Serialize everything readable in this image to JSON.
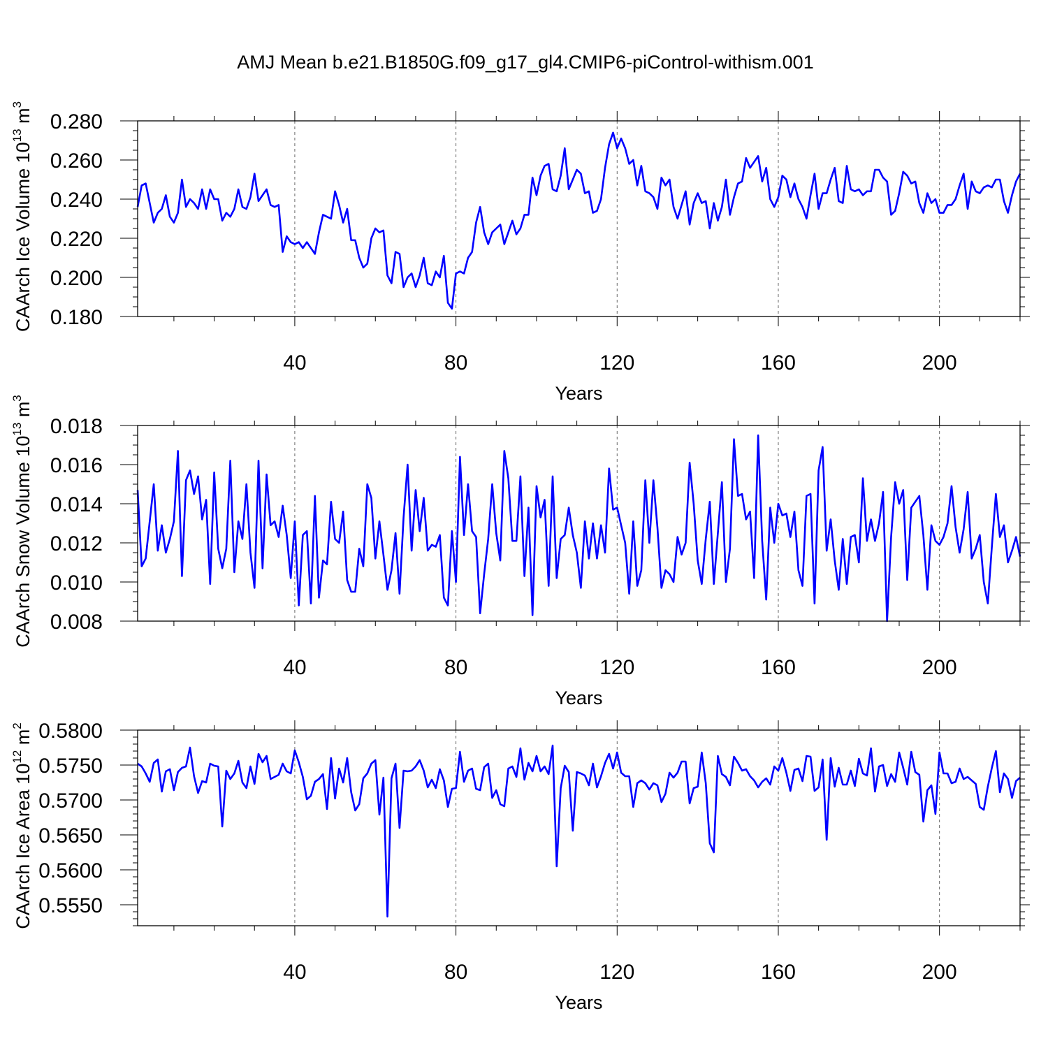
{
  "title": "AMJ Mean b.e21.B1850G.f09_g17_gl4.CMIP6-piControl-withism.001",
  "chart_data": [
    {
      "type": "line",
      "ylabel_main": "CAArch Ice Volume 10",
      "ylabel_exp": "13",
      "ylabel_unit": " m",
      "ylabel_unit_exp": "3",
      "xlabel": "Years",
      "xlim": [
        1,
        220
      ],
      "ylim": [
        0.18,
        0.28
      ],
      "xticks": [
        40,
        80,
        120,
        160,
        200
      ],
      "xtick_labels": [
        "40",
        "80",
        "120",
        "160",
        "200"
      ],
      "yticks": [
        0.18,
        0.2,
        0.22,
        0.24,
        0.26,
        0.28
      ],
      "ytick_labels": [
        "0.180",
        "0.200",
        "0.220",
        "0.240",
        "0.260",
        "0.280"
      ],
      "yminor_step": 0.005,
      "color": "#0000ff",
      "x_start": 1,
      "values": [
        0.236,
        0.247,
        0.248,
        0.238,
        0.228,
        0.233,
        0.235,
        0.242,
        0.231,
        0.228,
        0.233,
        0.25,
        0.236,
        0.24,
        0.238,
        0.235,
        0.245,
        0.235,
        0.245,
        0.24,
        0.24,
        0.229,
        0.233,
        0.231,
        0.235,
        0.245,
        0.236,
        0.235,
        0.241,
        0.253,
        0.239,
        0.242,
        0.245,
        0.237,
        0.236,
        0.237,
        0.213,
        0.221,
        0.218,
        0.217,
        0.218,
        0.215,
        0.218,
        0.215,
        0.212,
        0.223,
        0.232,
        0.231,
        0.23,
        0.244,
        0.237,
        0.228,
        0.235,
        0.219,
        0.219,
        0.21,
        0.205,
        0.207,
        0.22,
        0.225,
        0.223,
        0.224,
        0.201,
        0.197,
        0.213,
        0.212,
        0.195,
        0.2,
        0.202,
        0.195,
        0.201,
        0.21,
        0.197,
        0.196,
        0.203,
        0.2,
        0.211,
        0.187,
        0.184,
        0.202,
        0.203,
        0.202,
        0.21,
        0.213,
        0.228,
        0.236,
        0.223,
        0.217,
        0.223,
        0.225,
        0.227,
        0.217,
        0.223,
        0.229,
        0.222,
        0.225,
        0.232,
        0.232,
        0.251,
        0.242,
        0.252,
        0.257,
        0.258,
        0.245,
        0.244,
        0.252,
        0.266,
        0.245,
        0.25,
        0.255,
        0.253,
        0.243,
        0.244,
        0.233,
        0.234,
        0.24,
        0.256,
        0.268,
        0.274,
        0.266,
        0.271,
        0.266,
        0.258,
        0.26,
        0.247,
        0.257,
        0.244,
        0.243,
        0.241,
        0.235,
        0.251,
        0.247,
        0.25,
        0.236,
        0.23,
        0.237,
        0.244,
        0.227,
        0.238,
        0.243,
        0.238,
        0.239,
        0.225,
        0.238,
        0.229,
        0.236,
        0.25,
        0.232,
        0.241,
        0.248,
        0.249,
        0.261,
        0.256,
        0.259,
        0.262,
        0.249,
        0.256,
        0.24,
        0.236,
        0.241,
        0.252,
        0.25,
        0.241,
        0.248,
        0.24,
        0.236,
        0.23,
        0.242,
        0.253,
        0.235,
        0.243,
        0.243,
        0.25,
        0.256,
        0.239,
        0.238,
        0.257,
        0.245,
        0.244,
        0.245,
        0.242,
        0.244,
        0.244,
        0.255,
        0.255,
        0.251,
        0.249,
        0.232,
        0.234,
        0.243,
        0.254,
        0.252,
        0.248,
        0.249,
        0.238,
        0.233,
        0.243,
        0.238,
        0.24,
        0.233,
        0.233,
        0.237,
        0.237,
        0.24,
        0.247,
        0.253,
        0.235,
        0.249,
        0.244,
        0.243,
        0.246,
        0.247,
        0.246,
        0.25,
        0.25,
        0.239,
        0.233,
        0.242,
        0.249,
        0.253
      ]
    },
    {
      "type": "line",
      "ylabel_main": "CAArch Snow Volume 10",
      "ylabel_exp": "13",
      "ylabel_unit": " m",
      "ylabel_unit_exp": "3",
      "xlabel": "Years",
      "xlim": [
        1,
        220
      ],
      "ylim": [
        0.008,
        0.018
      ],
      "xticks": [
        40,
        80,
        120,
        160,
        200
      ],
      "xtick_labels": [
        "40",
        "80",
        "120",
        "160",
        "200"
      ],
      "yticks": [
        0.008,
        0.01,
        0.012,
        0.014,
        0.016,
        0.018
      ],
      "ytick_labels": [
        "0.008",
        "0.010",
        "0.012",
        "0.014",
        "0.016",
        "0.018"
      ],
      "yminor_step": 0.0005,
      "color": "#0000ff",
      "x_start": 1,
      "values": [
        0.0147,
        0.0108,
        0.0112,
        0.0131,
        0.015,
        0.0116,
        0.0129,
        0.0115,
        0.0122,
        0.0131,
        0.0167,
        0.0103,
        0.0152,
        0.0157,
        0.0145,
        0.0154,
        0.0132,
        0.0142,
        0.0099,
        0.0156,
        0.0117,
        0.0107,
        0.0117,
        0.0162,
        0.0105,
        0.0131,
        0.0122,
        0.015,
        0.0115,
        0.0097,
        0.0162,
        0.0107,
        0.0155,
        0.0129,
        0.0131,
        0.0123,
        0.0139,
        0.0124,
        0.0102,
        0.0131,
        0.0088,
        0.0124,
        0.0126,
        0.0089,
        0.0144,
        0.0092,
        0.0111,
        0.0109,
        0.0141,
        0.0122,
        0.012,
        0.0136,
        0.0101,
        0.0095,
        0.0095,
        0.0117,
        0.0108,
        0.015,
        0.0143,
        0.0112,
        0.0131,
        0.0114,
        0.0096,
        0.0106,
        0.0125,
        0.0094,
        0.0133,
        0.016,
        0.0116,
        0.0147,
        0.0126,
        0.0143,
        0.0116,
        0.0119,
        0.0118,
        0.0124,
        0.0092,
        0.0088,
        0.0126,
        0.01,
        0.0164,
        0.0124,
        0.015,
        0.0126,
        0.0123,
        0.0084,
        0.0104,
        0.0122,
        0.015,
        0.0125,
        0.0111,
        0.0167,
        0.0153,
        0.0121,
        0.0121,
        0.0154,
        0.0103,
        0.0138,
        0.0083,
        0.0149,
        0.0133,
        0.0142,
        0.0098,
        0.0154,
        0.0102,
        0.0122,
        0.0124,
        0.0138,
        0.0124,
        0.0115,
        0.0097,
        0.0131,
        0.0112,
        0.013,
        0.0112,
        0.0129,
        0.0115,
        0.0158,
        0.0137,
        0.0138,
        0.0129,
        0.012,
        0.0094,
        0.0131,
        0.0098,
        0.0106,
        0.0152,
        0.012,
        0.0152,
        0.0128,
        0.0097,
        0.0106,
        0.0104,
        0.01,
        0.0123,
        0.0114,
        0.012,
        0.0161,
        0.014,
        0.0111,
        0.0099,
        0.0122,
        0.0141,
        0.0099,
        0.0125,
        0.0151,
        0.01,
        0.0117,
        0.0173,
        0.0144,
        0.0145,
        0.0132,
        0.0136,
        0.0102,
        0.0175,
        0.0121,
        0.0091,
        0.0138,
        0.012,
        0.014,
        0.0134,
        0.0135,
        0.0123,
        0.0136,
        0.0106,
        0.0098,
        0.0144,
        0.0145,
        0.0089,
        0.0157,
        0.0169,
        0.0116,
        0.0132,
        0.0111,
        0.0096,
        0.0122,
        0.0099,
        0.0123,
        0.0124,
        0.011,
        0.0153,
        0.0121,
        0.0132,
        0.0121,
        0.013,
        0.0146,
        0.008,
        0.0123,
        0.0151,
        0.014,
        0.0147,
        0.0101,
        0.0138,
        0.0141,
        0.0144,
        0.0124,
        0.0096,
        0.0129,
        0.0121,
        0.0119,
        0.0123,
        0.013,
        0.0149,
        0.0128,
        0.0115,
        0.0127,
        0.0146,
        0.0112,
        0.0117,
        0.0124,
        0.01,
        0.0089,
        0.0118,
        0.0145,
        0.0123,
        0.0129,
        0.011,
        0.0116,
        0.0123,
        0.0113
      ]
    },
    {
      "type": "line",
      "ylabel_main": "CAArch Ice Area 10",
      "ylabel_exp": "12",
      "ylabel_unit": " m",
      "ylabel_unit_exp": "2",
      "xlabel": "Years",
      "xlim": [
        1,
        220
      ],
      "ylim": [
        0.552,
        0.58
      ],
      "xticks": [
        40,
        80,
        120,
        160,
        200
      ],
      "xtick_labels": [
        "40",
        "80",
        "120",
        "160",
        "200"
      ],
      "yticks": [
        0.555,
        0.56,
        0.565,
        0.57,
        0.575,
        0.58
      ],
      "ytick_labels": [
        "0.5550",
        "0.5600",
        "0.5650",
        "0.5700",
        "0.5750",
        "0.5800"
      ],
      "yminor_step": 0.001,
      "color": "#0000ff",
      "x_start": 1,
      "values": [
        0.5752,
        0.5748,
        0.5738,
        0.5726,
        0.5753,
        0.5758,
        0.5712,
        0.5741,
        0.5744,
        0.5714,
        0.574,
        0.5746,
        0.5748,
        0.5775,
        0.5734,
        0.571,
        0.5727,
        0.5725,
        0.5752,
        0.5749,
        0.5748,
        0.5662,
        0.5742,
        0.573,
        0.5738,
        0.5756,
        0.5725,
        0.5717,
        0.5748,
        0.5723,
        0.5766,
        0.5754,
        0.5763,
        0.573,
        0.5733,
        0.5736,
        0.5752,
        0.5741,
        0.5738,
        0.5771,
        0.5754,
        0.5733,
        0.5701,
        0.5706,
        0.5726,
        0.573,
        0.5737,
        0.5687,
        0.576,
        0.5702,
        0.5745,
        0.5725,
        0.576,
        0.5711,
        0.5685,
        0.5694,
        0.5731,
        0.5738,
        0.5752,
        0.5757,
        0.5679,
        0.5732,
        0.5533,
        0.5731,
        0.5752,
        0.566,
        0.5742,
        0.5741,
        0.5742,
        0.5748,
        0.5757,
        0.5742,
        0.5718,
        0.5729,
        0.5717,
        0.5744,
        0.5728,
        0.569,
        0.5716,
        0.5717,
        0.5769,
        0.5726,
        0.5742,
        0.5745,
        0.5716,
        0.5714,
        0.5747,
        0.5752,
        0.5703,
        0.5714,
        0.5694,
        0.5691,
        0.5745,
        0.5748,
        0.5733,
        0.5774,
        0.5729,
        0.5753,
        0.5741,
        0.5763,
        0.5741,
        0.5748,
        0.5737,
        0.5778,
        0.5605,
        0.5717,
        0.5749,
        0.574,
        0.5656,
        0.574,
        0.5738,
        0.5735,
        0.5721,
        0.5752,
        0.5718,
        0.5734,
        0.5753,
        0.5766,
        0.5745,
        0.5768,
        0.5739,
        0.5734,
        0.5734,
        0.569,
        0.5724,
        0.5728,
        0.5724,
        0.5715,
        0.5724,
        0.5721,
        0.5697,
        0.5709,
        0.5739,
        0.5732,
        0.5739,
        0.5755,
        0.5755,
        0.5695,
        0.5717,
        0.5719,
        0.5768,
        0.5724,
        0.5638,
        0.5625,
        0.5763,
        0.5737,
        0.5733,
        0.5721,
        0.5762,
        0.5753,
        0.5742,
        0.5744,
        0.5734,
        0.5728,
        0.5718,
        0.5726,
        0.5731,
        0.5722,
        0.5748,
        0.5742,
        0.576,
        0.5739,
        0.5713,
        0.5743,
        0.5745,
        0.5727,
        0.5763,
        0.5762,
        0.5713,
        0.5718,
        0.5758,
        0.5643,
        0.576,
        0.5719,
        0.5746,
        0.5722,
        0.5722,
        0.5742,
        0.572,
        0.5759,
        0.5738,
        0.5735,
        0.5774,
        0.5712,
        0.5748,
        0.575,
        0.572,
        0.5737,
        0.5726,
        0.5768,
        0.5746,
        0.5722,
        0.5769,
        0.574,
        0.5736,
        0.5669,
        0.5714,
        0.5721,
        0.568,
        0.5768,
        0.5738,
        0.5738,
        0.5724,
        0.5726,
        0.5745,
        0.573,
        0.5733,
        0.5728,
        0.5723,
        0.569,
        0.5686,
        0.5719,
        0.5746,
        0.577,
        0.5711,
        0.5738,
        0.573,
        0.5703,
        0.5727,
        0.5732
      ]
    }
  ]
}
